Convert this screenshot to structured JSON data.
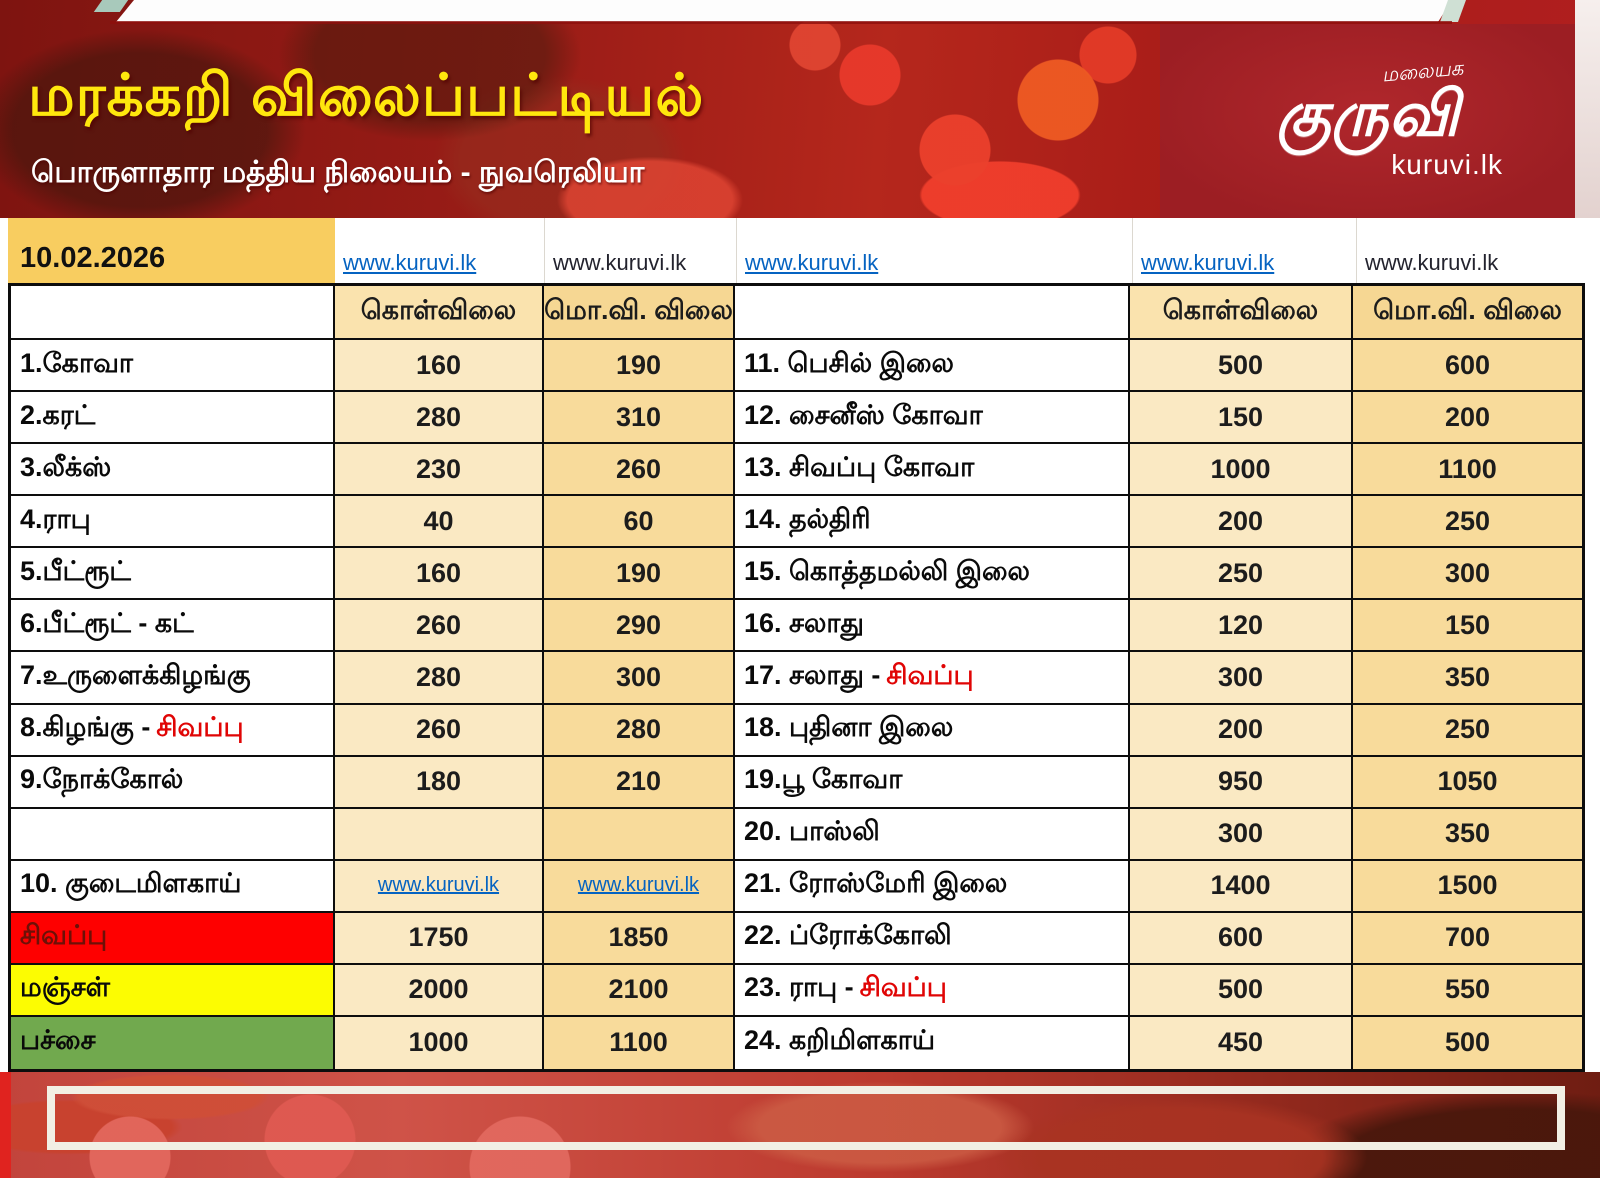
{
  "banner": {
    "title": "மரக்கறி விலைப்பட்டியல்",
    "subtitle": "பொருளாதார மத்திய நிலையம் - நுவரெலியா",
    "logo": {
      "tagline": "மலையக",
      "wordmark": "குருவி",
      "site": "kuruvi.lk"
    }
  },
  "date_row": {
    "date": "10.02.2026",
    "links": [
      {
        "text": "www.kuruvi.lk",
        "variant": "link"
      },
      {
        "text": "www.kuruvi.lk",
        "variant": "plain"
      },
      {
        "text": "www.kuruvi.lk",
        "variant": "link"
      },
      {
        "text": "www.kuruvi.lk",
        "variant": "link"
      },
      {
        "text": "www.kuruvi.lk",
        "variant": "plain"
      }
    ]
  },
  "table": {
    "headers": {
      "buy": "கொள்விலை",
      "wholesale": "மொ.வி. விலை"
    },
    "left_rows": [
      {
        "name": "1.கோவா",
        "name_red": "",
        "buy": "160",
        "wholesale": "190"
      },
      {
        "name": "2.கரட்",
        "name_red": "",
        "buy": "280",
        "wholesale": "310"
      },
      {
        "name": "3.லீக்ஸ்",
        "name_red": "",
        "buy": "230",
        "wholesale": "260"
      },
      {
        "name": "4.ராபு",
        "name_red": "",
        "buy": "40",
        "wholesale": "60"
      },
      {
        "name": "5.பீட்ரூட்",
        "name_red": "",
        "buy": "160",
        "wholesale": "190"
      },
      {
        "name": "6.பீட்ரூட் - கட்",
        "name_red": "",
        "buy": "260",
        "wholesale": "290"
      },
      {
        "name": "7.உருளைக்கிழங்கு",
        "name_red": "",
        "buy": "280",
        "wholesale": "300"
      },
      {
        "name": "8.கிழங்கு -",
        "name_red": "சிவப்பு",
        "buy": "260",
        "wholesale": "280"
      },
      {
        "name": "9.நோக்கோல்",
        "name_red": "",
        "buy": "180",
        "wholesale": "210"
      },
      {
        "name": "",
        "name_red": "",
        "buy": "",
        "wholesale": ""
      },
      {
        "name": "10. குடைமிளகாய்",
        "name_red": "",
        "buy": "www.kuruvi.lk",
        "wholesale": "www.kuruvi.lk"
      },
      {
        "name": "சிவப்பு",
        "name_red": "",
        "buy": "1750",
        "wholesale": "1850"
      },
      {
        "name": "மஞ்சள்",
        "name_red": "",
        "buy": "2000",
        "wholesale": "2100"
      },
      {
        "name": "பச்சை",
        "name_red": "",
        "buy": "1000",
        "wholesale": "1100"
      }
    ],
    "right_rows": [
      {
        "name": "11. பெசில் இலை",
        "name_red": "",
        "buy": "500",
        "wholesale": "600"
      },
      {
        "name": "12. சைனீஸ் கோவா",
        "name_red": "",
        "buy": "150",
        "wholesale": "200"
      },
      {
        "name": "13. சிவப்பு கோவா",
        "name_red": "",
        "buy": "1000",
        "wholesale": "1100"
      },
      {
        "name": "14. தல்திரி",
        "name_red": "",
        "buy": "200",
        "wholesale": "250"
      },
      {
        "name": "15. கொத்தமல்லி இலை",
        "name_red": "",
        "buy": "250",
        "wholesale": "300"
      },
      {
        "name": "16. சலாது",
        "name_red": "",
        "buy": "120",
        "wholesale": "150"
      },
      {
        "name": "17. சலாது -",
        "name_red": "சிவப்பு",
        "buy": "300",
        "wholesale": "350"
      },
      {
        "name": "18. புதினா இலை",
        "name_red": "",
        "buy": "200",
        "wholesale": "250"
      },
      {
        "name": "19.பூ கோவா",
        "name_red": "",
        "buy": "950",
        "wholesale": "1050"
      },
      {
        "name": "20. பாஸ்லி",
        "name_red": "",
        "buy": "300",
        "wholesale": "350"
      },
      {
        "name": "21. ரோஸ்மேரி இலை",
        "name_red": "",
        "buy": "1400",
        "wholesale": "1500"
      },
      {
        "name": "22. ப்ரோக்கோலி",
        "name_red": "",
        "buy": "600",
        "wholesale": "700"
      },
      {
        "name": "23. ராபு -",
        "name_red": "சிவப்பு",
        "buy": "500",
        "wholesale": "550"
      },
      {
        "name": "24. கறிமிளகாய்",
        "name_red": "",
        "buy": "450",
        "wholesale": "500"
      }
    ]
  },
  "colors": {
    "accent_red_text": "#E00505",
    "row_red": "#FE0000",
    "row_yellow": "#FCFC02",
    "row_green": "#71A94E",
    "link_blue": "#0563C1",
    "date_cell_yellow": "#F8CD60",
    "buy_cell": "#FAE9C3",
    "wholesale_cell": "#F8DB9B",
    "title_yellow": "#FFE70D",
    "banner_red": "#A81C18"
  }
}
